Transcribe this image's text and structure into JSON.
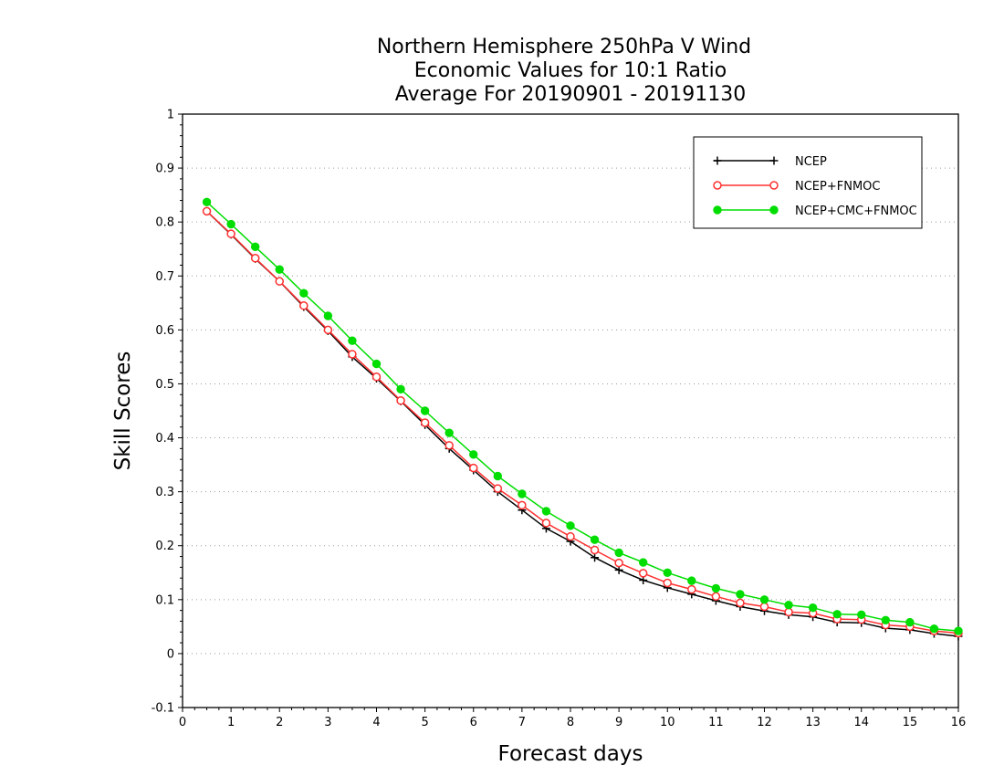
{
  "chart_data": {
    "type": "line",
    "title_lines": [
      "Northern Hemisphere 250hPa V Wind",
      "Economic Values for 10:1 Ratio",
      "Average For 20190901 - 20191130"
    ],
    "xlabel": "Forecast days",
    "ylabel": "Skill Scores",
    "xlim": [
      0,
      16
    ],
    "ylim": [
      -0.1,
      1
    ],
    "x_ticks": [
      0,
      1,
      2,
      3,
      4,
      5,
      6,
      7,
      8,
      9,
      10,
      11,
      12,
      13,
      14,
      15,
      16
    ],
    "y_ticks": [
      -0.1,
      0,
      0.1,
      0.2,
      0.3,
      0.4,
      0.5,
      0.6,
      0.7,
      0.8,
      0.9,
      1
    ],
    "y_tick_labels": [
      "-0.1",
      "0",
      "0.1",
      "0.2",
      "0.3",
      "0.4",
      "0.5",
      "0.6",
      "0.7",
      "0.8",
      "0.9",
      "1"
    ],
    "grid": "horizontal dotted",
    "legend_position": "top-right",
    "x": [
      0.5,
      1,
      1.5,
      2,
      2.5,
      3,
      3.5,
      4,
      4.5,
      5,
      5.5,
      6,
      6.5,
      7,
      7.5,
      8,
      8.5,
      9,
      9.5,
      10,
      10.5,
      11,
      11.5,
      12,
      12.5,
      13,
      13.5,
      14,
      14.5,
      15,
      15.5,
      16
    ],
    "series": [
      {
        "name": "NCEP",
        "color": "#000000",
        "marker": "plus",
        "values": [
          0.82,
          0.777,
          0.732,
          0.69,
          0.643,
          0.598,
          0.55,
          0.51,
          0.468,
          0.424,
          0.38,
          0.34,
          0.3,
          0.266,
          0.232,
          0.208,
          0.178,
          0.155,
          0.136,
          0.122,
          0.11,
          0.098,
          0.087,
          0.079,
          0.072,
          0.068,
          0.058,
          0.057,
          0.047,
          0.044,
          0.037,
          0.032
        ]
      },
      {
        "name": "NCEP+FNMOC",
        "color": "#ff3030",
        "marker": "open-circle",
        "values": [
          0.82,
          0.778,
          0.733,
          0.69,
          0.645,
          0.6,
          0.555,
          0.513,
          0.469,
          0.428,
          0.386,
          0.344,
          0.306,
          0.275,
          0.242,
          0.217,
          0.192,
          0.168,
          0.149,
          0.131,
          0.119,
          0.106,
          0.094,
          0.087,
          0.077,
          0.075,
          0.064,
          0.063,
          0.053,
          0.05,
          0.042,
          0.038
        ]
      },
      {
        "name": "NCEP+CMC+FNMOC",
        "color": "#00dd00",
        "marker": "filled-circle",
        "values": [
          0.837,
          0.796,
          0.754,
          0.712,
          0.668,
          0.626,
          0.58,
          0.537,
          0.49,
          0.45,
          0.409,
          0.369,
          0.329,
          0.296,
          0.264,
          0.237,
          0.211,
          0.187,
          0.169,
          0.15,
          0.135,
          0.121,
          0.11,
          0.1,
          0.09,
          0.085,
          0.073,
          0.072,
          0.062,
          0.058,
          0.046,
          0.042
        ]
      }
    ]
  }
}
